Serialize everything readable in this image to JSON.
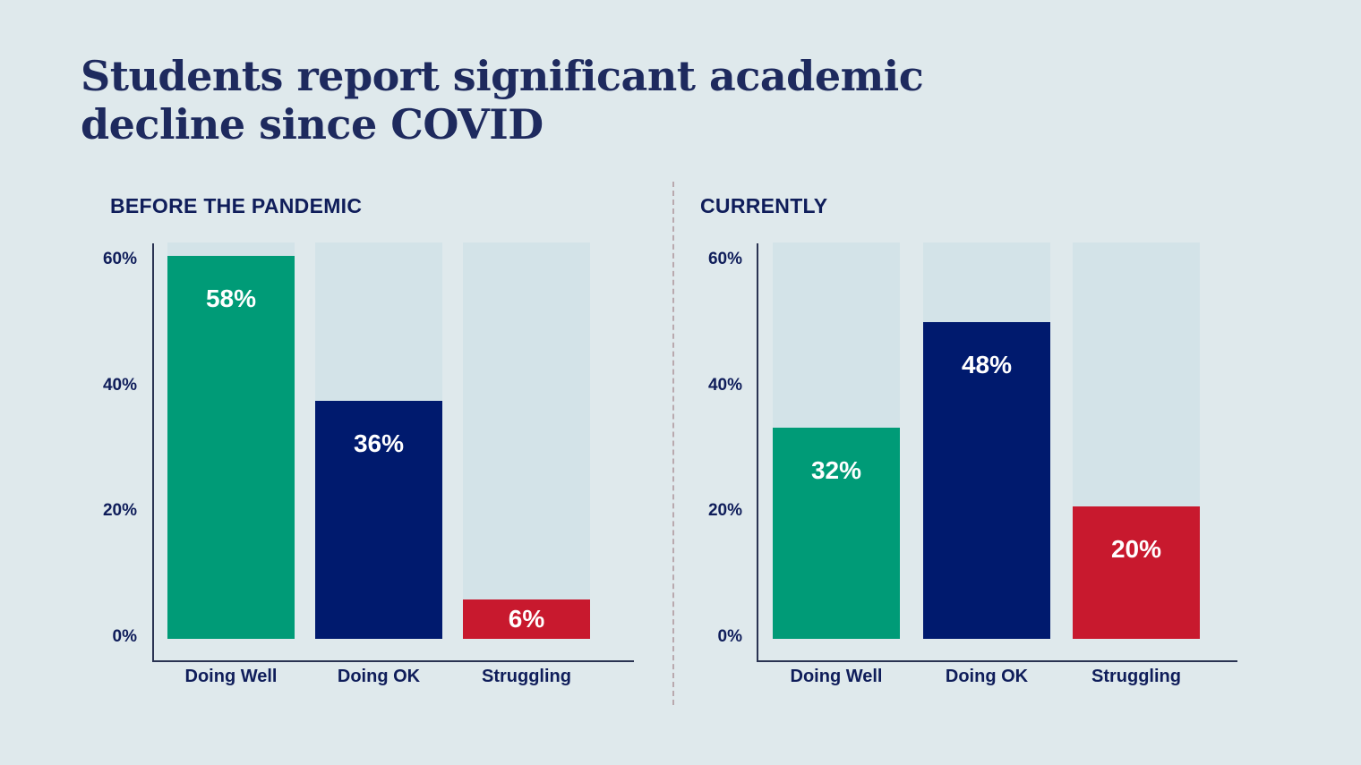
{
  "title": "Students report significant academic decline since COVID",
  "colors": {
    "Doing Well": "#009b77",
    "Doing OK": "#001a6e",
    "Struggling": "#c8192e",
    "track": "#d3e3e8",
    "background": "#dfe9ec"
  },
  "chart_data": [
    {
      "type": "bar",
      "title": "BEFORE THE PANDEMIC",
      "categories": [
        "Doing Well",
        "Doing OK",
        "Struggling"
      ],
      "values": [
        58,
        36,
        6
      ],
      "data_labels": [
        "58%",
        "36%",
        "6%"
      ],
      "yticks": [
        "0%",
        "20%",
        "40%",
        "60%"
      ],
      "ylim": [
        0,
        60
      ],
      "grid": false
    },
    {
      "type": "bar",
      "title": "CURRENTLY",
      "categories": [
        "Doing Well",
        "Doing OK",
        "Struggling"
      ],
      "values": [
        32,
        48,
        20
      ],
      "data_labels": [
        "32%",
        "48%",
        "20%"
      ],
      "yticks": [
        "0%",
        "20%",
        "40%",
        "60%"
      ],
      "ylim": [
        0,
        60
      ],
      "grid": false
    }
  ]
}
